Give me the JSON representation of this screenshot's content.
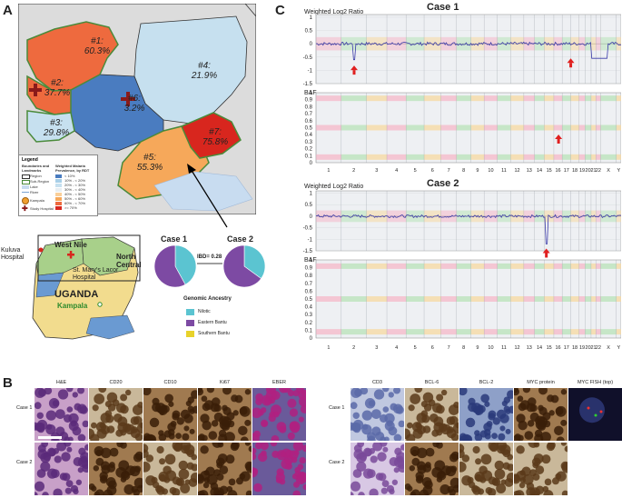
{
  "panels": {
    "a": "A",
    "b": "B",
    "c": "C"
  },
  "map": {
    "regions": [
      {
        "id": "#1:",
        "value": "60.3%"
      },
      {
        "id": "#2:",
        "value": "37.7%"
      },
      {
        "id": "#3:",
        "value": "29.8%"
      },
      {
        "id": "#4:",
        "value": "21.9%"
      },
      {
        "id": "#5:",
        "value": "55.3%"
      },
      {
        "id": "#6:",
        "value": "3.2%"
      },
      {
        "id": "#7:",
        "value": "75.8%"
      }
    ],
    "legend": {
      "title": "Legend",
      "boundaries_title": "Boundaries and Landmarks",
      "boundaries": [
        "Region",
        "Sub-Region",
        "Lake",
        "River"
      ],
      "landmarks": [
        "Kampala",
        "Study Hospital"
      ],
      "prevalence_title": "Weighted Malaria Prevalence, by RDT",
      "prevalence_bins": [
        {
          "label": "< 10%",
          "color": "#4a7cc0"
        },
        {
          "label": "10% - < 20%",
          "color": "#a8cfe8"
        },
        {
          "label": "20% - < 30%",
          "color": "#c6e0ef"
        },
        {
          "label": "30% - < 40%",
          "color": "#e8eef2"
        },
        {
          "label": "40% - < 50%",
          "color": "#f9cf9a"
        },
        {
          "label": "50% - < 60%",
          "color": "#f6a85a"
        },
        {
          "label": "60% - < 70%",
          "color": "#ee6a3e"
        },
        {
          "label": ">= 70%",
          "color": "#d8261e"
        }
      ]
    }
  },
  "inset": {
    "kuluva": "Kuluva Hospital",
    "west_nile": "West Nile",
    "north_central": "North Central",
    "st_marys": "St. Mary's Lacor Hospital",
    "uganda": "UGANDA",
    "kampala": "Kampala"
  },
  "ancestry": {
    "case1": "Case 1",
    "case2": "Case 2",
    "ibd": "IBD= 0.28",
    "legend_title": "Genomic Ancestry",
    "groups": [
      {
        "label": "Nilotic",
        "color": "#5bc4d1"
      },
      {
        "label": "Eastern Bantu",
        "color": "#7d4aa3"
      },
      {
        "label": "Southern Bantu",
        "color": "#e8d22a"
      }
    ],
    "case1_fractions": [
      0.42,
      0.58,
      0.0
    ],
    "case2_fractions": [
      0.35,
      0.65,
      0.0
    ]
  },
  "cnv": {
    "case1_title": "Case 1",
    "case2_title": "Case 2",
    "log2_label": "Weighted Log2 Ratio",
    "baf_label": "BAF",
    "log2_ticks": [
      "1",
      "0.5",
      "0",
      "-0.5",
      "-1",
      "-1.5"
    ],
    "baf_ticks": [
      "1",
      "0.9",
      "0.8",
      "0.7",
      "0.6",
      "0.5",
      "0.4",
      "0.3",
      "0.2",
      "0.1",
      "0"
    ],
    "chromosomes": [
      "1",
      "2",
      "3",
      "4",
      "5",
      "6",
      "7",
      "8",
      "9",
      "10",
      "11",
      "12",
      "13",
      "14",
      "15",
      "16",
      "17",
      "18",
      "19",
      "20",
      "21",
      "22",
      "X",
      "Y"
    ]
  },
  "histology": {
    "left_headers": [
      "H&E",
      "CD20",
      "CD10",
      "Ki67",
      "EBER"
    ],
    "right_headers": [
      "CD3",
      "BCL-6",
      "BCL-2",
      "MYC protein",
      "MYC FISH (top)"
    ],
    "case_labels": [
      "Case 1",
      "Case 2"
    ]
  }
}
